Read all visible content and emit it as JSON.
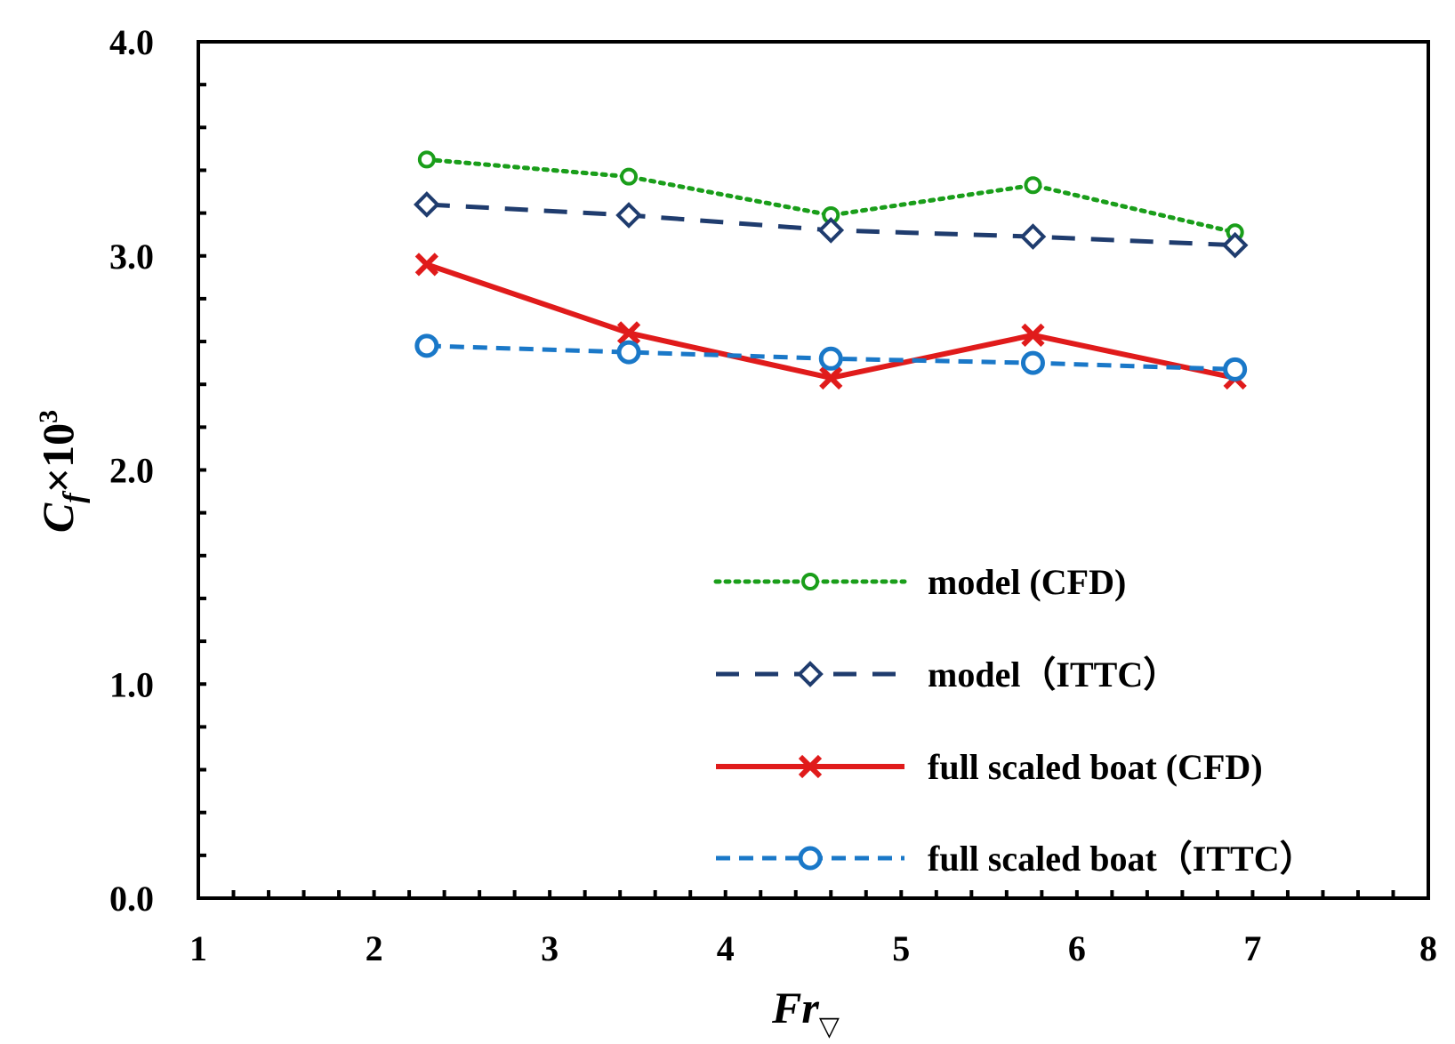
{
  "chart_data": {
    "type": "line",
    "title": "",
    "xlabel": "Fr",
    "xlabel_subscript": "▽",
    "ylabel": "C",
    "ylabel_subscript": "f",
    "ylabel_suffix": "×10",
    "ylabel_superscript": "3",
    "xlim": [
      1,
      8
    ],
    "ylim": [
      0,
      4
    ],
    "x_ticks": [
      1,
      2,
      3,
      4,
      5,
      6,
      7,
      8
    ],
    "x_tick_labels": [
      "1",
      "2",
      "3",
      "4",
      "5",
      "6",
      "7",
      "8"
    ],
    "y_ticks": [
      0,
      1,
      2,
      3,
      4
    ],
    "y_tick_labels": [
      "0.0",
      "1.0",
      "2.0",
      "3.0",
      "4.0"
    ],
    "grid": false,
    "legend_position": "bottom-right",
    "series": [
      {
        "name": "model (CFD)",
        "color": "#1a9e1a",
        "line_style": "dotted",
        "marker": "circle-small",
        "x": [
          2.3,
          3.45,
          4.6,
          5.75,
          6.9
        ],
        "y": [
          3.45,
          3.37,
          3.19,
          3.33,
          3.11
        ]
      },
      {
        "name": "model（ITTC）",
        "color": "#1f3c6e",
        "line_style": "dashed",
        "marker": "diamond",
        "x": [
          2.3,
          3.45,
          4.6,
          5.75,
          6.9
        ],
        "y": [
          3.24,
          3.19,
          3.12,
          3.09,
          3.05
        ]
      },
      {
        "name": "full scaled boat (CFD)",
        "color": "#e01b1b",
        "line_style": "solid",
        "marker": "x",
        "x": [
          2.3,
          3.45,
          4.6,
          5.75,
          6.9
        ],
        "y": [
          2.96,
          2.64,
          2.43,
          2.63,
          2.43
        ]
      },
      {
        "name": "full scaled boat（ITTC）",
        "color": "#1a78c8",
        "line_style": "dashed-short",
        "marker": "circle-open",
        "x": [
          2.3,
          3.45,
          4.6,
          5.75,
          6.9
        ],
        "y": [
          2.58,
          2.55,
          2.52,
          2.5,
          2.47
        ]
      }
    ]
  }
}
